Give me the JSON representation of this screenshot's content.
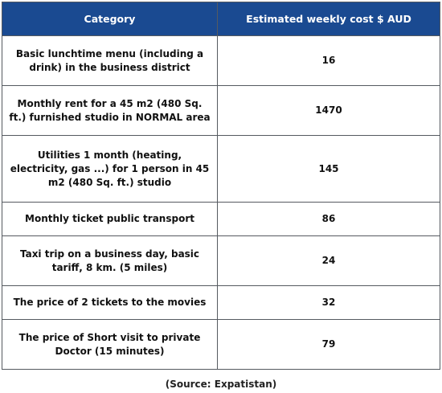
{
  "colors": {
    "header_bg": "#1a4a91",
    "header_text": "#ffffff",
    "border": "#555a60"
  },
  "chart_data": {
    "type": "table",
    "columns": [
      "Category",
      "Estimated weekly cost $ AUD"
    ],
    "rows": [
      {
        "category": "Basic lunchtime menu (including a drink) in the business district",
        "value": "16"
      },
      {
        "category": "Monthly rent for a 45 m2 (480 Sq. ft.) furnished studio in NORMAL area",
        "value": "1470"
      },
      {
        "category": "Utilities 1 month (heating, electricity, gas ...) for 1 person in 45 m2 (480 Sq. ft.) studio",
        "value": "145"
      },
      {
        "category": "Monthly ticket public transport",
        "value": "86"
      },
      {
        "category": "Taxi trip on a business day, basic tariff, 8 km. (5 miles)",
        "value": "24"
      },
      {
        "category": "The price of 2 tickets to the movies",
        "value": "32"
      },
      {
        "category": "The price of Short visit to private Doctor (15 minutes)",
        "value": "79"
      }
    ],
    "source": "(Source: Expatistan)"
  }
}
